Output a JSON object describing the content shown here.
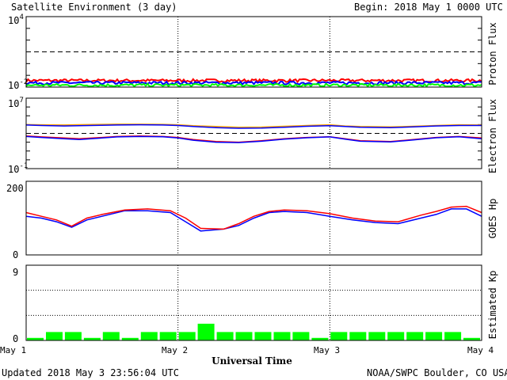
{
  "header": {
    "title": "Satellite Environment (3 day)",
    "begin": "Begin:  2018 May 1 0000 UTC"
  },
  "footer": {
    "updated": "Updated 2018 May  3 23:56:04 UTC",
    "credit": "NOAA/SWPC Boulder, CO USA"
  },
  "chart_data": [
    {
      "type": "line",
      "ylabel": "Proton Flux",
      "yscale": "log",
      "ylim": [
        0.01,
        10000
      ],
      "yticks": [
        "10",
        "10"
      ],
      "ytick_exponents": [
        "4",
        "-2"
      ],
      "threshold": 10,
      "series": [
        {
          "color": "#ff0000",
          "level": 0.035
        },
        {
          "color": "#0000ff",
          "level": 0.022
        },
        {
          "color": "#00ff00",
          "level": 0.014
        }
      ]
    },
    {
      "type": "line",
      "ylabel": "Electron Flux",
      "yscale": "log",
      "ylim": [
        0.1,
        10000000
      ],
      "yticks": [
        "10",
        "10"
      ],
      "ytick_exponents": [
        "7",
        "-1"
      ],
      "threshold": 1000,
      "x": [
        0,
        0.1,
        0.25,
        0.35,
        0.5,
        0.6,
        0.75,
        0.9,
        1.0,
        1.1,
        1.25,
        1.4,
        1.55,
        1.7,
        1.85,
        2.0,
        2.1,
        2.2,
        2.4,
        2.55,
        2.7,
        2.85,
        3.0
      ],
      "series": [
        {
          "color": "#ffa500",
          "values": [
            10000,
            9500,
            9000,
            9800,
            10500,
            11000,
            11000,
            10500,
            9500,
            7500,
            6000,
            5000,
            5200,
            6500,
            8000,
            9500,
            7000,
            6000,
            5500,
            6500,
            8000,
            9500,
            9000
          ]
        },
        {
          "color": "#0000ff",
          "values": [
            9000,
            8000,
            7000,
            7500,
            8500,
            9000,
            9500,
            9000,
            8000,
            6000,
            4500,
            3800,
            4000,
            5000,
            6500,
            7500,
            6000,
            5000,
            4500,
            5500,
            7000,
            8000,
            8000
          ]
        },
        {
          "color": "#ff0000",
          "values": [
            500,
            400,
            300,
            250,
            350,
            450,
            500,
            450,
            350,
            200,
            120,
            100,
            150,
            250,
            350,
            420,
            250,
            150,
            120,
            200,
            350,
            450,
            300
          ]
        },
        {
          "color": "#0000ff",
          "values": [
            450,
            350,
            250,
            200,
            300,
            400,
            450,
            420,
            300,
            170,
            100,
            90,
            130,
            220,
            320,
            400,
            220,
            130,
            110,
            180,
            320,
            420,
            250
          ]
        }
      ]
    },
    {
      "type": "line",
      "ylabel": "GOES Hp",
      "ylim": [
        0,
        200
      ],
      "yticks": [
        "200",
        "0"
      ],
      "x": [
        0,
        0.1,
        0.2,
        0.3,
        0.4,
        0.5,
        0.65,
        0.8,
        0.95,
        1.05,
        1.15,
        1.3,
        1.4,
        1.5,
        1.6,
        1.7,
        1.85,
        2.0,
        2.15,
        2.3,
        2.45,
        2.6,
        2.7,
        2.8,
        2.9,
        3.0
      ],
      "series": [
        {
          "color": "#0000ff",
          "values": [
            105,
            100,
            90,
            75,
            95,
            105,
            120,
            120,
            115,
            90,
            65,
            70,
            80,
            100,
            115,
            118,
            115,
            105,
            95,
            88,
            85,
            100,
            110,
            125,
            125,
            105
          ]
        },
        {
          "color": "#ff0000",
          "values": [
            115,
            105,
            95,
            78,
            100,
            110,
            122,
            125,
            120,
            100,
            72,
            70,
            85,
            105,
            118,
            122,
            120,
            112,
            100,
            92,
            90,
            108,
            118,
            130,
            132,
            115
          ]
        }
      ]
    },
    {
      "type": "bar",
      "ylabel": "Estimated Kp",
      "ylim": [
        0,
        9
      ],
      "yticks": [
        "9",
        "0"
      ],
      "color": "#00ff00",
      "values": [
        0.3,
        1,
        1,
        0.3,
        1,
        0.3,
        1,
        1,
        1,
        2,
        1,
        1,
        1,
        1,
        1,
        0.3,
        1,
        1,
        1,
        1,
        1,
        1,
        1,
        0.3
      ]
    }
  ],
  "xaxis": {
    "label": "Universal Time",
    "ticks": [
      "May 1",
      "May 2",
      "May 3",
      "May 4"
    ]
  }
}
